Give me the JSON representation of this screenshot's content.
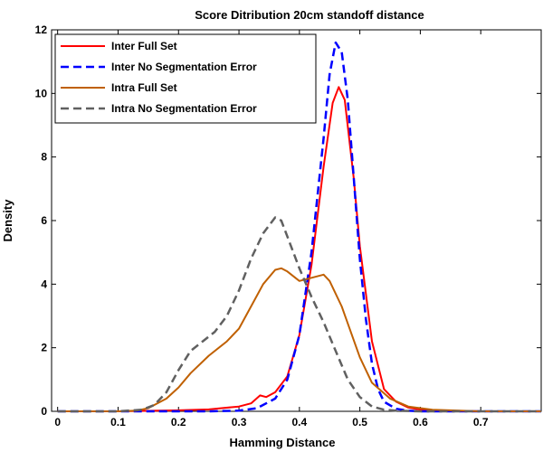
{
  "chart_data": {
    "type": "line",
    "title": "Score Ditribution 20cm standoff distance",
    "xlabel": "Hamming Distance",
    "ylabel": "Density",
    "xlim": [
      -0.01,
      0.8
    ],
    "ylim": [
      0,
      12
    ],
    "xticks": [
      0,
      0.1,
      0.2,
      0.3,
      0.4,
      0.5,
      0.6,
      0.7
    ],
    "xtick_labels": [
      "0",
      "0.1",
      "0.2",
      "0.3",
      "0.4",
      "0.5",
      "0.6",
      "0.7"
    ],
    "yticks": [
      0,
      2,
      4,
      6,
      8,
      10,
      12
    ],
    "ytick_labels": [
      "0",
      "2",
      "4",
      "6",
      "8",
      "10",
      "12"
    ],
    "grid": false,
    "legend_position": "top-left",
    "series": [
      {
        "name": "Inter Full Set",
        "color": "#ff0000",
        "dash": "solid",
        "x": [
          0,
          0.1,
          0.2,
          0.25,
          0.3,
          0.32,
          0.335,
          0.345,
          0.36,
          0.38,
          0.4,
          0.42,
          0.44,
          0.455,
          0.465,
          0.475,
          0.49,
          0.5,
          0.52,
          0.54,
          0.56,
          0.58,
          0.6,
          0.65,
          0.7,
          0.8
        ],
        "y": [
          0,
          0,
          0.03,
          0.06,
          0.15,
          0.25,
          0.5,
          0.45,
          0.6,
          1.1,
          2.4,
          4.6,
          7.7,
          9.7,
          10.2,
          9.8,
          7.3,
          5.2,
          2.2,
          0.7,
          0.3,
          0.12,
          0.05,
          0.01,
          0,
          0
        ]
      },
      {
        "name": "Inter No Segmentation Error",
        "color": "#0000ff",
        "dash": "dashed",
        "x": [
          0,
          0.1,
          0.25,
          0.3,
          0.33,
          0.36,
          0.38,
          0.4,
          0.42,
          0.44,
          0.45,
          0.46,
          0.47,
          0.48,
          0.49,
          0.5,
          0.51,
          0.52,
          0.53,
          0.54,
          0.56,
          0.58,
          0.6,
          0.65,
          0.8
        ],
        "y": [
          0,
          0,
          0,
          0.02,
          0.1,
          0.4,
          1.0,
          2.4,
          5.0,
          8.6,
          10.6,
          11.6,
          11.3,
          9.8,
          7.3,
          4.8,
          2.9,
          1.5,
          0.7,
          0.3,
          0.08,
          0.02,
          0,
          0,
          0
        ]
      },
      {
        "name": "Intra Full Set",
        "color": "#c06000",
        "dash": "solid",
        "x": [
          0,
          0.1,
          0.13,
          0.15,
          0.18,
          0.2,
          0.22,
          0.25,
          0.28,
          0.3,
          0.32,
          0.34,
          0.36,
          0.37,
          0.38,
          0.4,
          0.42,
          0.44,
          0.45,
          0.47,
          0.5,
          0.52,
          0.55,
          0.58,
          0.62,
          0.7,
          0.8
        ],
        "y": [
          0,
          0,
          0.02,
          0.1,
          0.4,
          0.75,
          1.2,
          1.75,
          2.2,
          2.6,
          3.3,
          4.0,
          4.45,
          4.5,
          4.4,
          4.1,
          4.2,
          4.3,
          4.1,
          3.3,
          1.7,
          0.9,
          0.4,
          0.15,
          0.05,
          0,
          0
        ]
      },
      {
        "name": "Intra No Segmentation Error",
        "color": "#606060",
        "dash": "dashed",
        "x": [
          0,
          0.1,
          0.14,
          0.16,
          0.18,
          0.2,
          0.22,
          0.24,
          0.26,
          0.28,
          0.3,
          0.32,
          0.34,
          0.36,
          0.37,
          0.38,
          0.4,
          0.42,
          0.44,
          0.46,
          0.48,
          0.5,
          0.52,
          0.54,
          0.56,
          0.6,
          0.7,
          0.8
        ],
        "y": [
          0,
          0,
          0.05,
          0.2,
          0.6,
          1.3,
          1.9,
          2.2,
          2.5,
          3.0,
          3.8,
          4.8,
          5.6,
          6.1,
          6.0,
          5.5,
          4.5,
          3.6,
          2.8,
          1.9,
          1.0,
          0.45,
          0.15,
          0.05,
          0.02,
          0,
          0,
          0
        ]
      }
    ]
  }
}
